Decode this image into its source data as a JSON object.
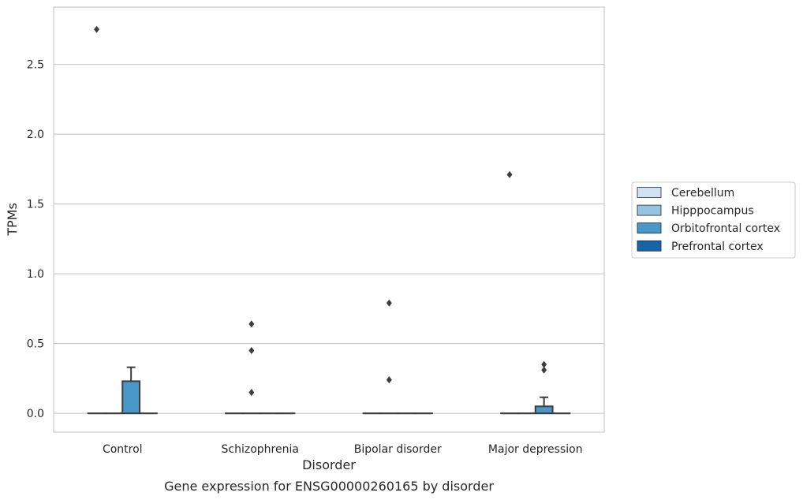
{
  "chart_data": {
    "type": "box",
    "title": "Gene expression for ENSG00000260165 by disorder",
    "xlabel": "Disorder",
    "ylabel": "TPMs",
    "categories": [
      "Control",
      "Schizophrenia",
      "Bipolar disorder",
      "Major depression"
    ],
    "ylim": [
      -0.135,
      2.91
    ],
    "yticks": [
      0.0,
      0.5,
      1.0,
      1.5,
      2.0,
      2.5
    ],
    "ytick_labels": [
      "0.0",
      "0.5",
      "1.0",
      "1.5",
      "2.0",
      "2.5"
    ],
    "grid": true,
    "legend_position": "right",
    "series": [
      {
        "name": "Cerebellum",
        "color": "#d0e1f2",
        "boxes": [
          {
            "q1": 0,
            "median": 0,
            "q3": 0,
            "whisker_low": 0,
            "whisker_high": 0,
            "outliers": [
              2.75
            ]
          },
          {
            "q1": 0,
            "median": 0,
            "q3": 0,
            "whisker_low": 0,
            "whisker_high": 0,
            "outliers": []
          },
          {
            "q1": 0,
            "median": 0,
            "q3": 0,
            "whisker_low": 0,
            "whisker_high": 0,
            "outliers": []
          },
          {
            "q1": 0,
            "median": 0,
            "q3": 0,
            "whisker_low": 0,
            "whisker_high": 0,
            "outliers": [
              1.71
            ]
          }
        ]
      },
      {
        "name": "Hipppocampus",
        "color": "#94c4df",
        "boxes": [
          {
            "q1": 0,
            "median": 0,
            "q3": 0,
            "whisker_low": 0,
            "whisker_high": 0,
            "outliers": []
          },
          {
            "q1": 0,
            "median": 0,
            "q3": 0,
            "whisker_low": 0,
            "whisker_high": 0,
            "outliers": [
              0.15,
              0.45,
              0.64
            ]
          },
          {
            "q1": 0,
            "median": 0,
            "q3": 0,
            "whisker_low": 0,
            "whisker_high": 0,
            "outliers": [
              0.24,
              0.79
            ]
          },
          {
            "q1": 0,
            "median": 0,
            "q3": 0,
            "whisker_low": 0,
            "whisker_high": 0,
            "outliers": []
          }
        ]
      },
      {
        "name": "Orbitofrontal cortex",
        "color": "#4a98c9",
        "boxes": [
          {
            "q1": 0,
            "median": 0,
            "q3": 0.23,
            "whisker_low": 0,
            "whisker_high": 0.33,
            "outliers": []
          },
          {
            "q1": 0,
            "median": 0,
            "q3": 0,
            "whisker_low": 0,
            "whisker_high": 0,
            "outliers": []
          },
          {
            "q1": 0,
            "median": 0,
            "q3": 0,
            "whisker_low": 0,
            "whisker_high": 0,
            "outliers": []
          },
          {
            "q1": 0,
            "median": 0,
            "q3": 0.05,
            "whisker_low": 0,
            "whisker_high": 0.115,
            "outliers": [
              0.31,
              0.35
            ]
          }
        ]
      },
      {
        "name": "Prefrontal cortex",
        "color": "#1764ab",
        "boxes": [
          {
            "q1": 0,
            "median": 0,
            "q3": 0,
            "whisker_low": 0,
            "whisker_high": 0,
            "outliers": []
          },
          {
            "q1": 0,
            "median": 0,
            "q3": 0,
            "whisker_low": 0,
            "whisker_high": 0,
            "outliers": []
          },
          {
            "q1": 0,
            "median": 0,
            "q3": 0,
            "whisker_low": 0,
            "whisker_high": 0,
            "outliers": []
          },
          {
            "q1": 0,
            "median": 0,
            "q3": 0,
            "whisker_low": 0,
            "whisker_high": 0,
            "outliers": []
          }
        ]
      }
    ]
  }
}
